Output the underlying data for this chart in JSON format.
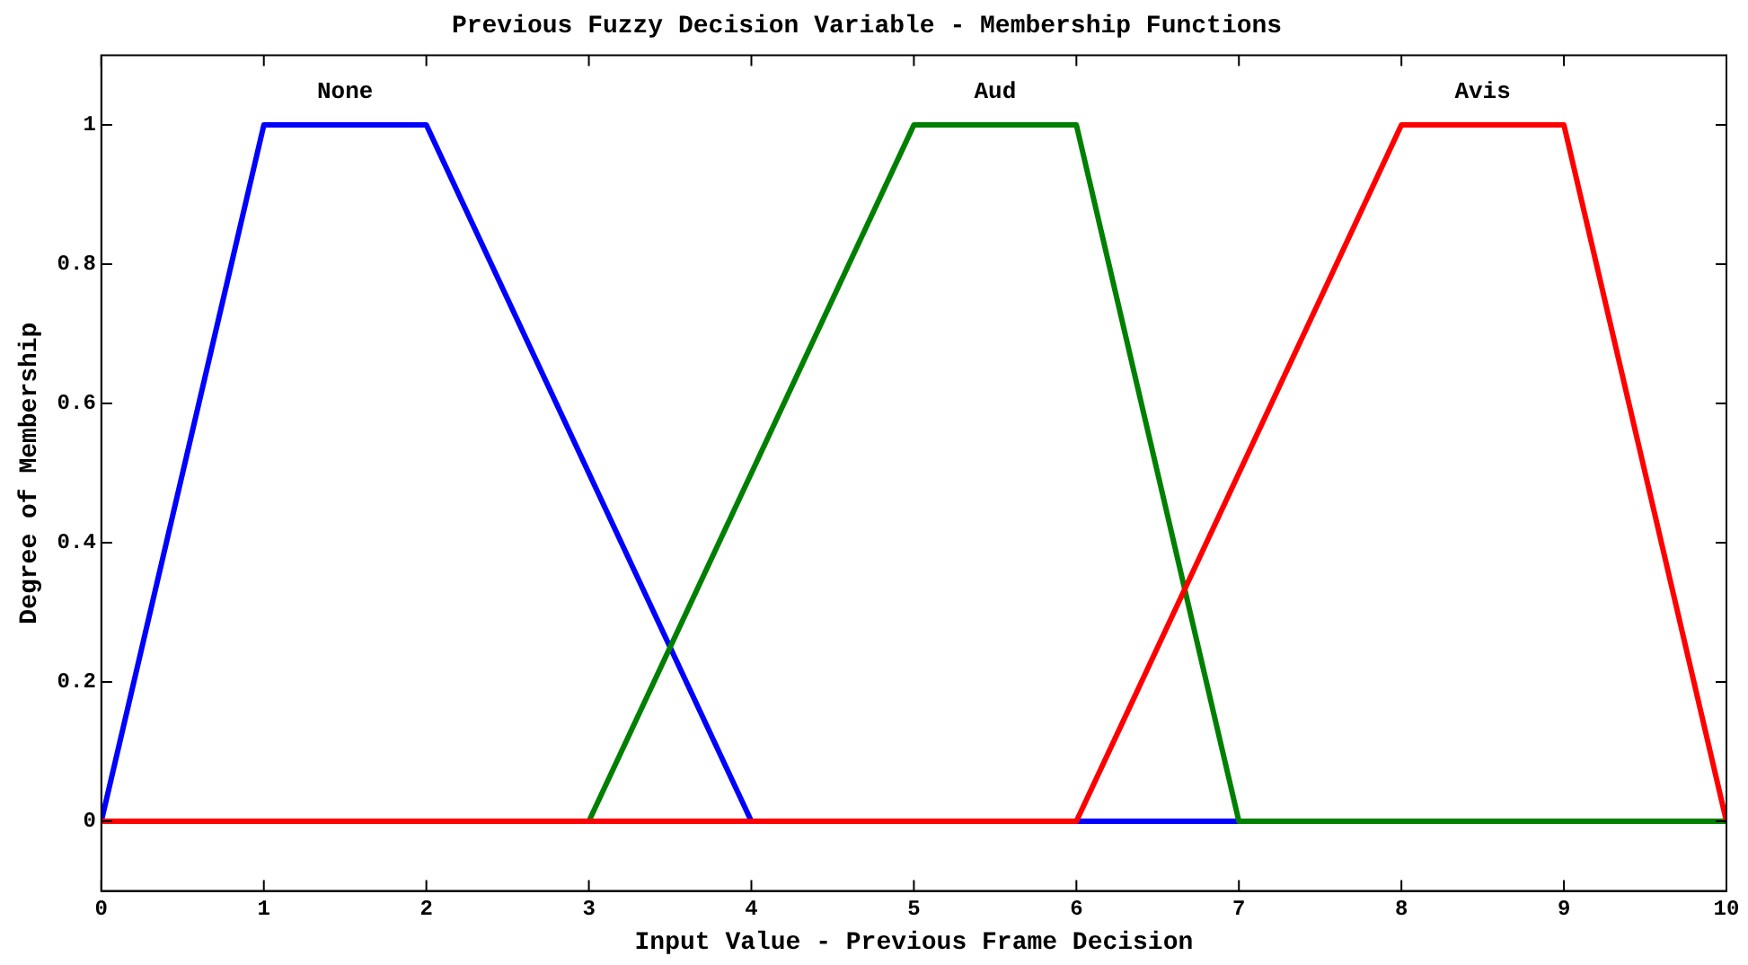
{
  "chart_data": {
    "type": "line",
    "title": "Previous Fuzzy Decision Variable - Membership Functions",
    "xlabel": "Input Value - Previous Frame Decision",
    "ylabel": "Degree of Membership",
    "xlim": [
      0,
      10
    ],
    "xticks": [
      0,
      1,
      2,
      3,
      4,
      5,
      6,
      7,
      8,
      9,
      10
    ],
    "ylim": [
      -0.1,
      1.1
    ],
    "yticks": [
      0,
      0.2,
      0.4,
      0.6,
      0.8,
      1
    ],
    "grid": false,
    "legend": false,
    "marker": "none",
    "line_style": "solid",
    "series": [
      {
        "name": "None",
        "color": "#0000ff",
        "x": [
          0,
          1,
          2,
          4,
          10
        ],
        "values": [
          0,
          1,
          1,
          0,
          0
        ]
      },
      {
        "name": "Aud",
        "color": "#008000",
        "x": [
          0,
          3,
          5,
          6,
          7,
          10
        ],
        "values": [
          0,
          0,
          1,
          1,
          0,
          0
        ]
      },
      {
        "name": "Avis",
        "color": "#ff0000",
        "x": [
          0,
          6,
          8,
          9,
          10
        ],
        "values": [
          0,
          0,
          1,
          1,
          0
        ]
      }
    ]
  }
}
